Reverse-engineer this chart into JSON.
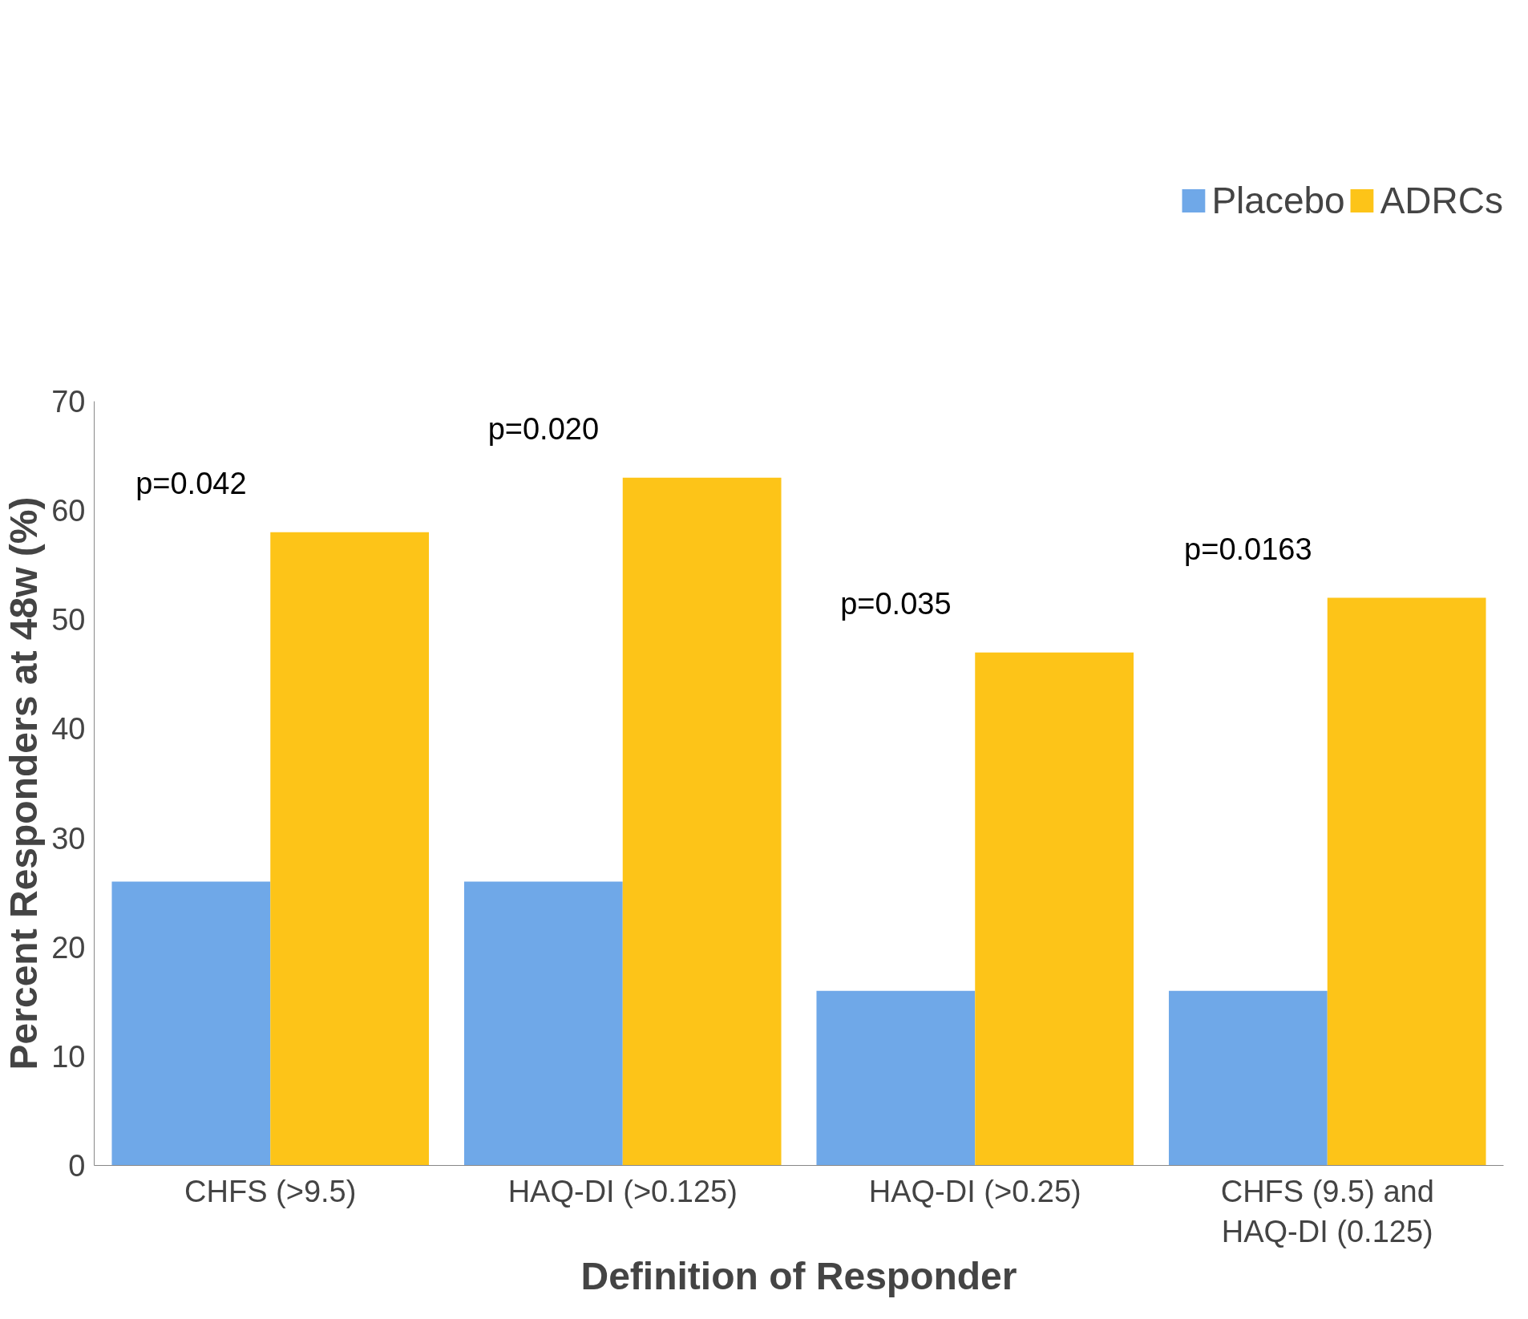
{
  "chart_data": {
    "type": "bar",
    "xlabel": "Definition of Responder",
    "ylabel": "Percent Responders at 48w (%)",
    "categories": [
      "CHFS (>9.5)",
      "HAQ-DI (>0.125)",
      "HAQ-DI (>0.25)",
      "CHFS (9.5) and\nHAQ-DI (0.125)"
    ],
    "series": [
      {
        "name": "Placebo",
        "color": "#6fa8e8",
        "values": [
          26,
          26,
          16,
          16
        ]
      },
      {
        "name": "ADRCs",
        "color": "#fdc418",
        "values": [
          58,
          63,
          47,
          52
        ]
      }
    ],
    "ylim": [
      0,
      70
    ],
    "yticks": [
      0,
      10,
      20,
      30,
      40,
      50,
      60,
      70
    ],
    "grid": false,
    "legend": "top right",
    "annotations": [
      "p=0.042",
      "p=0.020",
      "p=0.035",
      "p=0.0163"
    ]
  }
}
